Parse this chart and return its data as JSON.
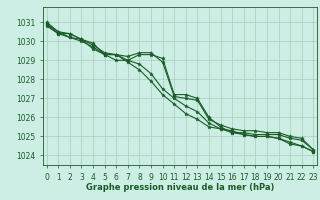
{
  "bg_color": "#cceee4",
  "grid_color": "#aaccbb",
  "line_color": "#1a5c28",
  "marker_color": "#1a5c28",
  "xlabel": "Graphe pression niveau de la mer (hPa)",
  "xlim": [
    -0.3,
    23.3
  ],
  "ylim": [
    1023.5,
    1031.8
  ],
  "yticks": [
    1024,
    1025,
    1026,
    1027,
    1028,
    1029,
    1030,
    1031
  ],
  "xticks": [
    0,
    1,
    2,
    3,
    4,
    5,
    6,
    7,
    8,
    9,
    10,
    11,
    12,
    13,
    14,
    15,
    16,
    17,
    18,
    19,
    20,
    21,
    22,
    23
  ],
  "series": [
    [
      1031.0,
      1030.5,
      1030.4,
      1030.1,
      1029.8,
      1029.4,
      1029.3,
      1029.2,
      1029.4,
      1029.4,
      1028.9,
      1027.1,
      1027.0,
      1026.9,
      1025.9,
      1025.6,
      1025.4,
      1025.3,
      1025.3,
      1025.2,
      1025.2,
      1025.0,
      1024.9,
      1024.3
    ],
    [
      1030.8,
      1030.4,
      1030.4,
      1030.1,
      1029.6,
      1029.3,
      1029.3,
      1029.0,
      1029.3,
      1029.3,
      1029.1,
      1027.2,
      1027.2,
      1027.0,
      1026.0,
      1025.5,
      1025.2,
      1025.2,
      1025.1,
      1025.1,
      1025.1,
      1024.9,
      1024.8,
      1024.3
    ],
    [
      1030.9,
      1030.5,
      1030.2,
      1030.0,
      1029.7,
      1029.3,
      1029.0,
      1029.0,
      1028.8,
      1028.3,
      1027.5,
      1027.0,
      1026.6,
      1026.3,
      1025.7,
      1025.4,
      1025.2,
      1025.1,
      1025.0,
      1025.0,
      1024.9,
      1024.7,
      1024.5,
      1024.2
    ],
    [
      1030.9,
      1030.4,
      1030.2,
      1030.1,
      1029.9,
      1029.3,
      1029.3,
      1028.9,
      1028.5,
      1027.9,
      1027.2,
      1026.7,
      1026.2,
      1025.9,
      1025.5,
      1025.4,
      1025.3,
      1025.1,
      1025.0,
      1025.0,
      1024.9,
      1024.6,
      1024.5,
      1024.2
    ]
  ],
  "tick_fontsize": 5.5,
  "xlabel_fontsize": 6.0,
  "linewidth": 0.8,
  "markersize": 2.8
}
